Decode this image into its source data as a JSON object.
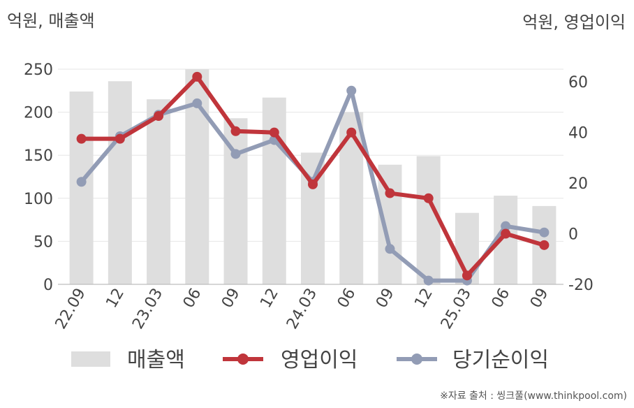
{
  "chart_data": {
    "type": "bar",
    "categories": [
      "22.09",
      "12",
      "23.03",
      "06",
      "09",
      "12",
      "24.03",
      "06",
      "09",
      "12",
      "25.03",
      "06",
      "09"
    ],
    "left_axis": {
      "unit_label": "억원, 매출액",
      "ylim": [
        0,
        250
      ],
      "ticks": [
        "0",
        "50",
        "100",
        "150",
        "200",
        "250"
      ],
      "tick_values": [
        0,
        50,
        100,
        150,
        200,
        250
      ]
    },
    "right_axis": {
      "unit_label": "억원, 영업이익",
      "ylim": [
        -20,
        65
      ],
      "ticks": [
        "-20",
        "0",
        "20",
        "40",
        "60"
      ],
      "tick_values": [
        -20,
        0,
        20,
        40,
        60
      ]
    },
    "series": [
      {
        "name": "매출액",
        "type": "bar",
        "axis": "left",
        "color": "#dedede",
        "values": [
          224,
          236,
          215,
          250,
          193,
          217,
          153,
          200,
          139,
          149,
          83,
          103,
          91
        ]
      },
      {
        "name": "영업이익",
        "type": "line",
        "axis": "right",
        "color": "#c0353b",
        "values": [
          37.5,
          37.5,
          46.5,
          62,
          40.5,
          40,
          19.5,
          40,
          16,
          14,
          -16.5,
          0,
          -4.5
        ]
      },
      {
        "name": "당기순이익",
        "type": "line",
        "axis": "right",
        "color": "#929cb5",
        "values": [
          20.5,
          38.5,
          47,
          51.5,
          31.5,
          37,
          20.5,
          56.5,
          -6,
          -18.5,
          -18.5,
          3,
          0.5
        ]
      }
    ],
    "grid": true,
    "legend": "bottom"
  },
  "source_note": "※자료 출처 : 씽크풀(www.thinkpool.com)"
}
